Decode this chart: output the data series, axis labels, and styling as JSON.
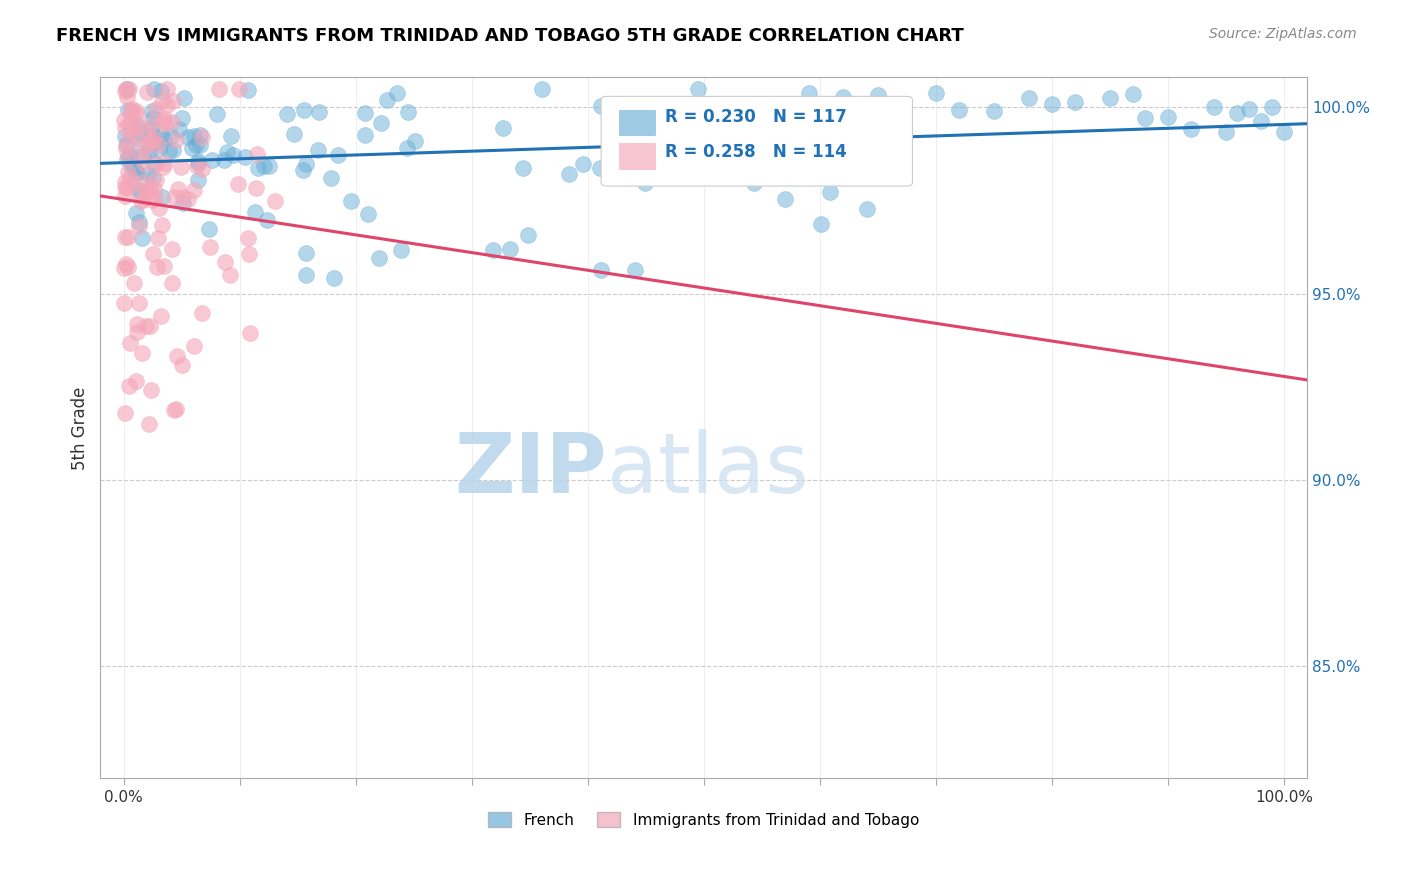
{
  "title": "FRENCH VS IMMIGRANTS FROM TRINIDAD AND TOBAGO 5TH GRADE CORRELATION CHART",
  "source": "Source: ZipAtlas.com",
  "ylabel": "5th Grade",
  "xlabel": "",
  "x_min": 0.0,
  "x_max": 1.0,
  "y_min": 0.82,
  "y_max": 1.008,
  "y_ticks": [
    0.85,
    0.9,
    0.95,
    1.0
  ],
  "y_tick_labels": [
    "85.0%",
    "90.0%",
    "95.0%",
    "100.0%"
  ],
  "x_ticks": [
    0.0,
    0.1,
    0.2,
    0.3,
    0.4,
    0.5,
    0.6,
    0.7,
    0.8,
    0.9,
    1.0
  ],
  "x_tick_labels": [
    "0.0%",
    "",
    "",
    "",
    "",
    "",
    "",
    "",
    "",
    "",
    "100.0%"
  ],
  "blue_color": "#6aaed6",
  "pink_color": "#f4a6b8",
  "blue_line_color": "#2171b5",
  "pink_line_color": "#e0446a",
  "legend_blue_label": "French",
  "legend_pink_label": "Immigrants from Trinidad and Tobago",
  "R_blue": 0.23,
  "N_blue": 117,
  "R_pink": 0.258,
  "N_pink": 114,
  "watermark_zip": "ZIP",
  "watermark_atlas": "atlas",
  "background_color": "#ffffff",
  "grid_color": "#cccccc",
  "text_color": "#2171b5",
  "title_color": "#000000"
}
